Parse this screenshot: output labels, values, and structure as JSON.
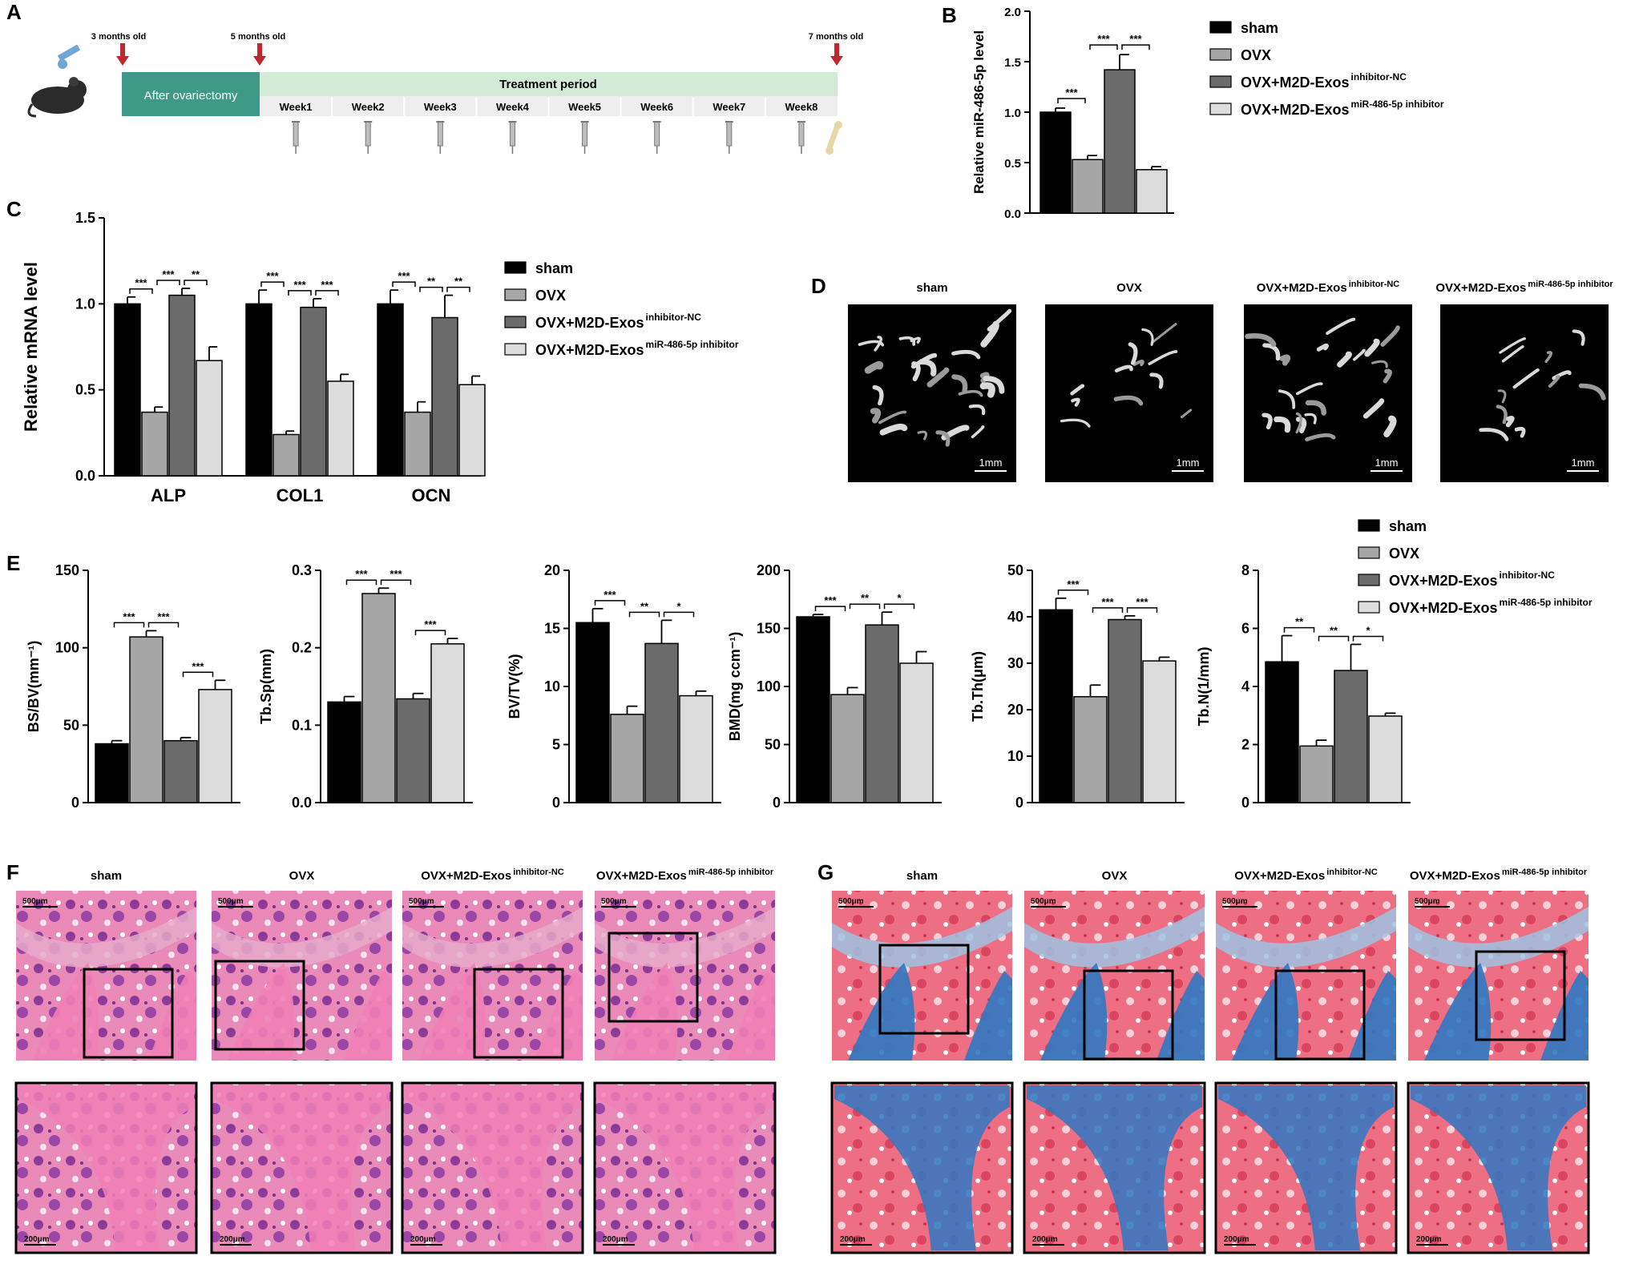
{
  "colors": {
    "sham": "#000000",
    "ovx": "#a6a6a6",
    "nc": "#6b6b6b",
    "inh": "#dcdcdc",
    "timeline_green": "#8fbf98",
    "timeline_band": "#d9ecd9",
    "arrow": "#c0282d",
    "he_pink": "#e884b4",
    "he_purple": "#9a3f9e",
    "masson_blue": "#3b7fc4",
    "masson_red": "#e14b63"
  },
  "panel_labels": {
    "A": "A",
    "B": "B",
    "C": "C",
    "D": "D",
    "E": "E",
    "F": "F",
    "G": "G"
  },
  "timeline": {
    "ages": [
      "3 months old",
      "5 months old",
      "7 months old"
    ],
    "after_label": "After ovariectomy",
    "treatment_label": "Treatment period",
    "weeks": [
      "Week1",
      "Week2",
      "Week3",
      "Week4",
      "Week5",
      "Week6",
      "Week7",
      "Week8"
    ],
    "icons": [
      "mouse-icon",
      "syringe-icon",
      "bone-icon"
    ]
  },
  "legend": {
    "items": [
      {
        "key": "sham",
        "label": "sham",
        "sup": ""
      },
      {
        "key": "ovx",
        "label": "OVX",
        "sup": ""
      },
      {
        "key": "nc",
        "label": "OVX+M2D-Exos",
        "sup": "inhibitor-NC"
      },
      {
        "key": "inh",
        "label": "OVX+M2D-Exos",
        "sup": "miR-486-5p inhibitor"
      }
    ]
  },
  "chart_data": [
    {
      "id": "B",
      "type": "bar",
      "ylabel": "Relative  miR-486-5p level",
      "ylim": [
        0,
        2.0
      ],
      "yticks": [
        "0.0",
        "0.5",
        "1.0",
        "1.5",
        "2.0"
      ],
      "categories": [
        ""
      ],
      "series": [
        {
          "name": "sham",
          "values": [
            1.0
          ],
          "err": [
            0.04
          ]
        },
        {
          "name": "OVX",
          "values": [
            0.53
          ],
          "err": [
            0.04
          ]
        },
        {
          "name": "OVX+M2D-Exos inhibitor-NC",
          "values": [
            1.42
          ],
          "err": [
            0.15
          ]
        },
        {
          "name": "OVX+M2D-Exos miR-486-5p inhibitor",
          "values": [
            0.43
          ],
          "err": [
            0.03
          ]
        }
      ],
      "sig": [
        {
          "from": 0,
          "to": 1,
          "label": "***"
        },
        {
          "from": 1,
          "to": 2,
          "label": "***"
        },
        {
          "from": 2,
          "to": 3,
          "label": "***"
        }
      ]
    },
    {
      "id": "C",
      "type": "bar",
      "ylabel": "Relative  mRNA level",
      "ylim": [
        0,
        1.5
      ],
      "yticks": [
        "0.0",
        "0.5",
        "1.0",
        "1.5"
      ],
      "categories": [
        "ALP",
        "COL1",
        "OCN"
      ],
      "series": [
        {
          "name": "sham",
          "values": [
            1.0,
            1.0,
            1.0
          ],
          "err": [
            0.04,
            0.08,
            0.08
          ]
        },
        {
          "name": "OVX",
          "values": [
            0.37,
            0.24,
            0.37
          ],
          "err": [
            0.03,
            0.02,
            0.06
          ]
        },
        {
          "name": "OVX+M2D-Exos inhibitor-NC",
          "values": [
            1.05,
            0.98,
            0.92
          ],
          "err": [
            0.04,
            0.05,
            0.13
          ]
        },
        {
          "name": "OVX+M2D-Exos miR-486-5p inhibitor",
          "values": [
            0.67,
            0.55,
            0.53
          ],
          "err": [
            0.08,
            0.04,
            0.05
          ]
        }
      ],
      "sig": [
        {
          "cat": 0,
          "from": 0,
          "to": 1,
          "label": "***"
        },
        {
          "cat": 0,
          "from": 1,
          "to": 2,
          "label": "***"
        },
        {
          "cat": 0,
          "from": 2,
          "to": 3,
          "label": "**"
        },
        {
          "cat": 1,
          "from": 0,
          "to": 1,
          "label": "***"
        },
        {
          "cat": 1,
          "from": 1,
          "to": 2,
          "label": "***"
        },
        {
          "cat": 1,
          "from": 2,
          "to": 3,
          "label": "***"
        },
        {
          "cat": 2,
          "from": 0,
          "to": 1,
          "label": "***"
        },
        {
          "cat": 2,
          "from": 1,
          "to": 2,
          "label": "**"
        },
        {
          "cat": 2,
          "from": 2,
          "to": 3,
          "label": "**"
        }
      ]
    },
    {
      "id": "E1",
      "type": "bar",
      "ylabel": "BS/BV(mm⁻¹)",
      "ylim": [
        0,
        150
      ],
      "yticks": [
        "0",
        "50",
        "100",
        "150"
      ],
      "categories": [
        ""
      ],
      "series": [
        {
          "name": "sham",
          "values": [
            38
          ],
          "err": [
            2
          ]
        },
        {
          "name": "OVX",
          "values": [
            107
          ],
          "err": [
            4
          ]
        },
        {
          "name": "OVX+M2D-Exos inhibitor-NC",
          "values": [
            40
          ],
          "err": [
            2
          ]
        },
        {
          "name": "OVX+M2D-Exos miR-486-5p inhibitor",
          "values": [
            73
          ],
          "err": [
            6
          ]
        }
      ],
      "sig": [
        {
          "from": 0,
          "to": 1,
          "label": "***"
        },
        {
          "from": 1,
          "to": 2,
          "label": "***"
        },
        {
          "from": 2,
          "to": 3,
          "label": "***"
        }
      ]
    },
    {
      "id": "E2",
      "type": "bar",
      "ylabel": "Tb.Sp(mm)",
      "ylim": [
        0,
        0.3
      ],
      "yticks": [
        "0.0",
        "0.1",
        "0.2",
        "0.3"
      ],
      "categories": [
        ""
      ],
      "series": [
        {
          "name": "sham",
          "values": [
            0.13
          ],
          "err": [
            0.007
          ]
        },
        {
          "name": "OVX",
          "values": [
            0.27
          ],
          "err": [
            0.007
          ]
        },
        {
          "name": "OVX+M2D-Exos inhibitor-NC",
          "values": [
            0.134
          ],
          "err": [
            0.007
          ]
        },
        {
          "name": "OVX+M2D-Exos miR-486-5p inhibitor",
          "values": [
            0.205
          ],
          "err": [
            0.007
          ]
        }
      ],
      "sig": [
        {
          "from": 0,
          "to": 1,
          "label": "***"
        },
        {
          "from": 1,
          "to": 2,
          "label": "***"
        },
        {
          "from": 2,
          "to": 3,
          "label": "***"
        }
      ]
    },
    {
      "id": "E3",
      "type": "bar",
      "ylabel": "BV/TV(%)",
      "ylim": [
        0,
        20
      ],
      "yticks": [
        "0",
        "5",
        "10",
        "15",
        "20"
      ],
      "categories": [
        ""
      ],
      "series": [
        {
          "name": "sham",
          "values": [
            15.5
          ],
          "err": [
            1.2
          ]
        },
        {
          "name": "OVX",
          "values": [
            7.6
          ],
          "err": [
            0.7
          ]
        },
        {
          "name": "OVX+M2D-Exos inhibitor-NC",
          "values": [
            13.7
          ],
          "err": [
            2.0
          ]
        },
        {
          "name": "OVX+M2D-Exos miR-486-5p inhibitor",
          "values": [
            9.2
          ],
          "err": [
            0.4
          ]
        }
      ],
      "sig": [
        {
          "from": 0,
          "to": 1,
          "label": "***"
        },
        {
          "from": 1,
          "to": 2,
          "label": "**"
        },
        {
          "from": 2,
          "to": 3,
          "label": "*"
        }
      ]
    },
    {
      "id": "E4",
      "type": "bar",
      "ylabel": "BMD(mg ccm⁻¹)",
      "ylim": [
        0,
        200
      ],
      "yticks": [
        "0",
        "50",
        "100",
        "150",
        "200"
      ],
      "categories": [
        ""
      ],
      "series": [
        {
          "name": "sham",
          "values": [
            160
          ],
          "err": [
            2
          ]
        },
        {
          "name": "OVX",
          "values": [
            93
          ],
          "err": [
            6
          ]
        },
        {
          "name": "OVX+M2D-Exos inhibitor-NC",
          "values": [
            153
          ],
          "err": [
            11
          ]
        },
        {
          "name": "OVX+M2D-Exos miR-486-5p inhibitor",
          "values": [
            120
          ],
          "err": [
            10
          ]
        }
      ],
      "sig": [
        {
          "from": 0,
          "to": 1,
          "label": "***"
        },
        {
          "from": 1,
          "to": 2,
          "label": "**"
        },
        {
          "from": 2,
          "to": 3,
          "label": "*"
        }
      ]
    },
    {
      "id": "E5",
      "type": "bar",
      "ylabel": "Tb.Th(μm)",
      "ylim": [
        0,
        50
      ],
      "yticks": [
        "0",
        "10",
        "20",
        "30",
        "40",
        "50"
      ],
      "categories": [
        ""
      ],
      "series": [
        {
          "name": "sham",
          "values": [
            41.5
          ],
          "err": [
            2.5
          ]
        },
        {
          "name": "OVX",
          "values": [
            22.8
          ],
          "err": [
            2.5
          ]
        },
        {
          "name": "OVX+M2D-Exos inhibitor-NC",
          "values": [
            39.4
          ],
          "err": [
            0.8
          ]
        },
        {
          "name": "OVX+M2D-Exos miR-486-5p inhibitor",
          "values": [
            30.5
          ],
          "err": [
            0.8
          ]
        }
      ],
      "sig": [
        {
          "from": 0,
          "to": 1,
          "label": "***"
        },
        {
          "from": 1,
          "to": 2,
          "label": "***"
        },
        {
          "from": 2,
          "to": 3,
          "label": "***"
        }
      ]
    },
    {
      "id": "E6",
      "type": "bar",
      "ylabel": "Tb.N(1/mm)",
      "ylim": [
        0,
        8
      ],
      "yticks": [
        "0",
        "2",
        "4",
        "6",
        "8"
      ],
      "categories": [
        ""
      ],
      "series": [
        {
          "name": "sham",
          "values": [
            4.85
          ],
          "err": [
            0.9
          ]
        },
        {
          "name": "OVX",
          "values": [
            1.95
          ],
          "err": [
            0.2
          ]
        },
        {
          "name": "OVX+M2D-Exos inhibitor-NC",
          "values": [
            4.55
          ],
          "err": [
            0.9
          ]
        },
        {
          "name": "OVX+M2D-Exos miR-486-5p inhibitor",
          "values": [
            2.98
          ],
          "err": [
            0.1
          ]
        }
      ],
      "sig": [
        {
          "from": 0,
          "to": 1,
          "label": "**"
        },
        {
          "from": 1,
          "to": 2,
          "label": "**"
        },
        {
          "from": 2,
          "to": 3,
          "label": "*"
        }
      ]
    }
  ],
  "microct": {
    "titles": [
      {
        "label": "sham",
        "sup": ""
      },
      {
        "label": "OVX",
        "sup": ""
      },
      {
        "label": "OVX+M2D-Exos",
        "sup": "inhibitor-NC"
      },
      {
        "label": "OVX+M2D-Exos",
        "sup": "miR-486-5p inhibitor"
      }
    ],
    "scale_label": "1mm"
  },
  "histology": {
    "titles": [
      {
        "label": "sham",
        "sup": ""
      },
      {
        "label": "OVX",
        "sup": ""
      },
      {
        "label": "OVX+M2D-Exos",
        "sup": "inhibitor-NC"
      },
      {
        "label": "OVX+M2D-Exos",
        "sup": "miR-486-5p inhibitor"
      }
    ],
    "scale_top": "500μm",
    "scale_bottom": "200μm"
  }
}
